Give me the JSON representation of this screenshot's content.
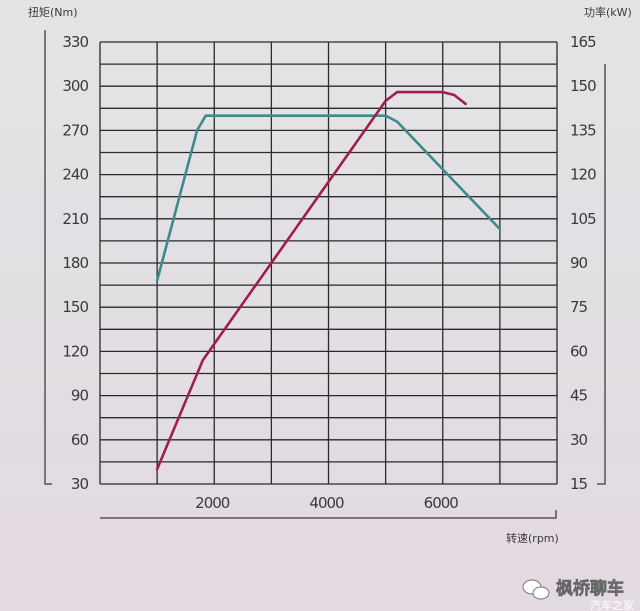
{
  "chart_data": {
    "type": "line",
    "title": "",
    "xlabel": "转速(rpm)",
    "ylabel_left": "扭矩(Nm)",
    "ylabel_right": "功率(kW)",
    "xlim": [
      0,
      8000
    ],
    "x_ticks": [
      2000,
      4000,
      6000
    ],
    "ylim_left": [
      30,
      330
    ],
    "y_ticks_left": [
      330,
      300,
      270,
      240,
      210,
      180,
      150,
      120,
      90,
      60,
      30
    ],
    "ylim_right": [
      15,
      165
    ],
    "y_ticks_right": [
      165,
      150,
      135,
      120,
      105,
      90,
      75,
      60,
      45,
      30,
      15
    ],
    "grid": true,
    "series": [
      {
        "axis": "left",
        "color": "#3d8a8c",
        "points": [
          [
            1000,
            168
          ],
          [
            1700,
            270
          ],
          [
            1850,
            280
          ],
          [
            5000,
            280
          ],
          [
            5200,
            276
          ],
          [
            7000,
            203
          ]
        ]
      },
      {
        "axis": "right",
        "color": "#9e1f4f",
        "points": [
          [
            1000,
            20
          ],
          [
            1800,
            57
          ],
          [
            5000,
            145
          ],
          [
            5200,
            148
          ],
          [
            6000,
            148
          ],
          [
            6200,
            147
          ],
          [
            6400,
            144
          ]
        ]
      }
    ]
  },
  "watermark": {
    "text": "枫桥聊车",
    "subtext": "汽车之家"
  }
}
